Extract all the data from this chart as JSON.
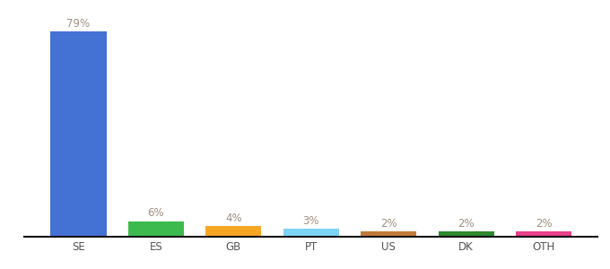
{
  "categories": [
    "SE",
    "ES",
    "GB",
    "PT",
    "US",
    "DK",
    "OTH"
  ],
  "values": [
    79,
    6,
    4,
    3,
    2,
    2,
    2
  ],
  "bar_colors": [
    "#4472d4",
    "#3dba4e",
    "#f5a623",
    "#7dd4f5",
    "#c27a3a",
    "#2e8a2e",
    "#e8408a"
  ],
  "labels": [
    "79%",
    "6%",
    "4%",
    "3%",
    "2%",
    "2%",
    "2%"
  ],
  "ylim": [
    0,
    88
  ],
  "background_color": "#ffffff",
  "label_color": "#a09080",
  "label_fontsize": 8.5,
  "tick_fontsize": 8.5,
  "bar_width": 0.72,
  "bottom_spine_color": "#111111",
  "tick_color": "#555555"
}
